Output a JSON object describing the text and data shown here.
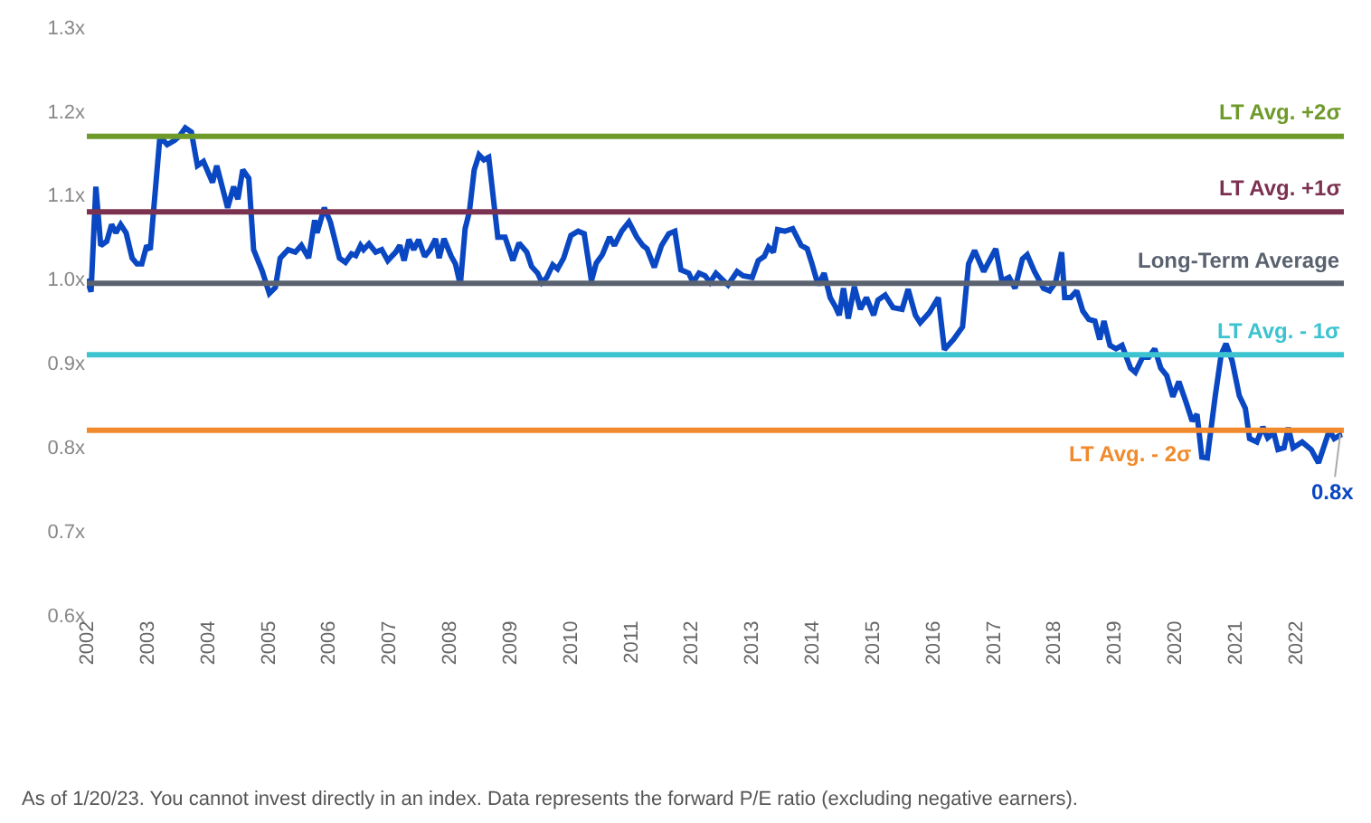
{
  "chart_data": {
    "type": "line",
    "line_style": "solid",
    "marker": "none",
    "grid": false,
    "x": [
      2002.0,
      2002.07,
      2002.15,
      2002.23,
      2002.33,
      2002.41,
      2002.48,
      2002.56,
      2002.65,
      2002.75,
      2002.83,
      2002.91,
      2002.99,
      2003.05,
      2003.21,
      2003.33,
      2003.45,
      2003.53,
      2003.63,
      2003.73,
      2003.83,
      2003.93,
      2004.08,
      2004.15,
      2004.33,
      2004.43,
      2004.5,
      2004.58,
      2004.68,
      2004.76,
      2004.9,
      2005.02,
      2005.12,
      2005.2,
      2005.33,
      2005.45,
      2005.55,
      2005.67,
      2005.77,
      2005.81,
      2005.93,
      2006.03,
      2006.18,
      2006.28,
      2006.38,
      2006.45,
      2006.53,
      2006.58,
      2006.67,
      2006.78,
      2006.88,
      2006.98,
      2007.11,
      2007.18,
      2007.25,
      2007.33,
      2007.41,
      2007.49,
      2007.59,
      2007.68,
      2007.77,
      2007.83,
      2007.91,
      2008.03,
      2008.1,
      2008.18,
      2008.26,
      2008.33,
      2008.41,
      2008.49,
      2008.57,
      2008.65,
      2008.8,
      2008.92,
      2009.05,
      2009.15,
      2009.28,
      2009.36,
      2009.46,
      2009.53,
      2009.61,
      2009.71,
      2009.79,
      2009.89,
      2010.01,
      2010.13,
      2010.23,
      2010.35,
      2010.43,
      2010.53,
      2010.65,
      2010.73,
      2010.85,
      2010.97,
      2011.1,
      2011.2,
      2011.27,
      2011.39,
      2011.51,
      2011.63,
      2011.73,
      2011.83,
      2011.96,
      2012.03,
      2012.13,
      2012.23,
      2012.31,
      2012.41,
      2012.61,
      2012.76,
      2012.86,
      2013.01,
      2013.11,
      2013.21,
      2013.28,
      2013.36,
      2013.43,
      2013.55,
      2013.68,
      2013.82,
      2013.92,
      2014.0,
      2014.1,
      2014.2,
      2014.3,
      2014.38,
      2014.45,
      2014.52,
      2014.6,
      2014.7,
      2014.8,
      2014.9,
      2015.02,
      2015.09,
      2015.21,
      2015.34,
      2015.49,
      2015.59,
      2015.71,
      2015.79,
      2015.94,
      2016.09,
      2016.19,
      2016.34,
      2016.49,
      2016.59,
      2016.69,
      2016.84,
      2017.04,
      2017.14,
      2017.26,
      2017.36,
      2017.48,
      2017.56,
      2017.68,
      2017.83,
      2017.93,
      2018.03,
      2018.13,
      2018.18,
      2018.28,
      2018.38,
      2018.48,
      2018.58,
      2018.68,
      2018.76,
      2018.83,
      2018.93,
      2019.03,
      2019.13,
      2019.27,
      2019.35,
      2019.47,
      2019.57,
      2019.67,
      2019.77,
      2019.87,
      2019.97,
      2020.07,
      2020.19,
      2020.29,
      2020.37,
      2020.45,
      2020.54,
      2020.67,
      2020.77,
      2020.85,
      2020.95,
      2021.07,
      2021.17,
      2021.24,
      2021.36,
      2021.46,
      2021.54,
      2021.64,
      2021.71,
      2021.81,
      2021.88,
      2021.96,
      2022.11,
      2022.26,
      2022.38,
      2022.56,
      2022.64,
      2022.76,
      2022.74
    ],
    "series": [
      {
        "color": "#0a47c2",
        "values": [
          1.0,
          0.985,
          1.11,
          1.04,
          1.045,
          1.065,
          1.055,
          1.065,
          1.055,
          1.025,
          1.018,
          1.018,
          1.04,
          1.035,
          1.17,
          1.16,
          1.165,
          1.17,
          1.18,
          1.175,
          1.135,
          1.14,
          1.115,
          1.135,
          1.085,
          1.11,
          1.095,
          1.13,
          1.12,
          1.035,
          1.01,
          0.983,
          0.99,
          1.025,
          1.035,
          1.032,
          1.04,
          1.025,
          1.07,
          1.055,
          1.085,
          1.068,
          1.025,
          1.02,
          1.03,
          1.028,
          1.04,
          1.035,
          1.042,
          1.032,
          1.035,
          1.022,
          1.032,
          1.04,
          1.022,
          1.047,
          1.035,
          1.047,
          1.027,
          1.035,
          1.048,
          1.025,
          1.048,
          1.027,
          1.018,
          0.993,
          1.06,
          1.08,
          1.13,
          1.148,
          1.142,
          1.145,
          1.05,
          1.05,
          1.022,
          1.043,
          1.032,
          1.015,
          1.007,
          0.996,
          1.002,
          1.017,
          1.012,
          1.025,
          1.052,
          1.057,
          1.054,
          0.998,
          1.019,
          1.029,
          1.05,
          1.04,
          1.057,
          1.068,
          1.05,
          1.04,
          1.036,
          1.014,
          1.04,
          1.054,
          1.057,
          1.011,
          1.007,
          0.996,
          1.007,
          1.004,
          0.996,
          1.007,
          0.993,
          1.009,
          1.004,
          1.002,
          1.022,
          1.027,
          1.038,
          1.032,
          1.059,
          1.057,
          1.06,
          1.04,
          1.036,
          1.018,
          0.993,
          1.007,
          0.978,
          0.968,
          0.957,
          0.989,
          0.953,
          0.991,
          0.964,
          0.978,
          0.957,
          0.975,
          0.981,
          0.966,
          0.964,
          0.988,
          0.957,
          0.948,
          0.96,
          0.978,
          0.916,
          0.928,
          0.943,
          1.018,
          1.034,
          1.009,
          1.036,
          0.998,
          1.002,
          0.989,
          1.024,
          1.029,
          1.009,
          0.989,
          0.986,
          0.996,
          1.032,
          0.978,
          0.978,
          0.986,
          0.962,
          0.952,
          0.95,
          0.928,
          0.95,
          0.921,
          0.917,
          0.921,
          0.894,
          0.889,
          0.907,
          0.907,
          0.917,
          0.894,
          0.885,
          0.86,
          0.878,
          0.853,
          0.831,
          0.839,
          0.788,
          0.787,
          0.86,
          0.91,
          0.923,
          0.903,
          0.861,
          0.846,
          0.81,
          0.806,
          0.824,
          0.811,
          0.817,
          0.797,
          0.799,
          0.823,
          0.799,
          0.806,
          0.797,
          0.781,
          0.82,
          0.81,
          0.815,
          0.815
        ]
      }
    ],
    "xlim": [
      2002,
      2022.8
    ],
    "xticks": [
      2002,
      2003,
      2004,
      2005,
      2006,
      2007,
      2008,
      2009,
      2010,
      2011,
      2012,
      2013,
      2014,
      2015,
      2016,
      2017,
      2018,
      2019,
      2020,
      2021,
      2022
    ],
    "ylim": [
      0.6,
      1.3
    ],
    "yticks": [
      {
        "value": 0.6,
        "label": "0.6x"
      },
      {
        "value": 0.7,
        "label": "0.7x"
      },
      {
        "value": 0.8,
        "label": "0.8x"
      },
      {
        "value": 0.9,
        "label": "0.9x"
      },
      {
        "value": 1.0,
        "label": "1.0x"
      },
      {
        "value": 1.1,
        "label": "1.1x"
      },
      {
        "value": 1.2,
        "label": "1.2x"
      },
      {
        "value": 1.3,
        "label": "1.3x"
      }
    ],
    "ref_lines": [
      {
        "axis": "y",
        "value": 1.17,
        "label": "LT Avg. +2σ",
        "color": "#6e9a2a"
      },
      {
        "axis": "y",
        "value": 1.08,
        "label": "LT Avg. +1σ",
        "color": "#7b3150"
      },
      {
        "axis": "y",
        "value": 0.995,
        "label": "Long-Term Average",
        "color": "#5a6270"
      },
      {
        "axis": "y",
        "value": 0.91,
        "label": "LT Avg. - 1σ",
        "color": "#3cc3d0"
      },
      {
        "axis": "y",
        "value": 0.82,
        "label": "LT Avg. - 2σ",
        "color": "#f08a2c"
      }
    ],
    "annotations": [
      {
        "text": "0.8x",
        "x": 2022.74,
        "y": 0.815
      },
      "As of 1/20/23. You cannot invest directly in an index. Data represents the forward P/E ratio (excluding negative earners)."
    ]
  }
}
